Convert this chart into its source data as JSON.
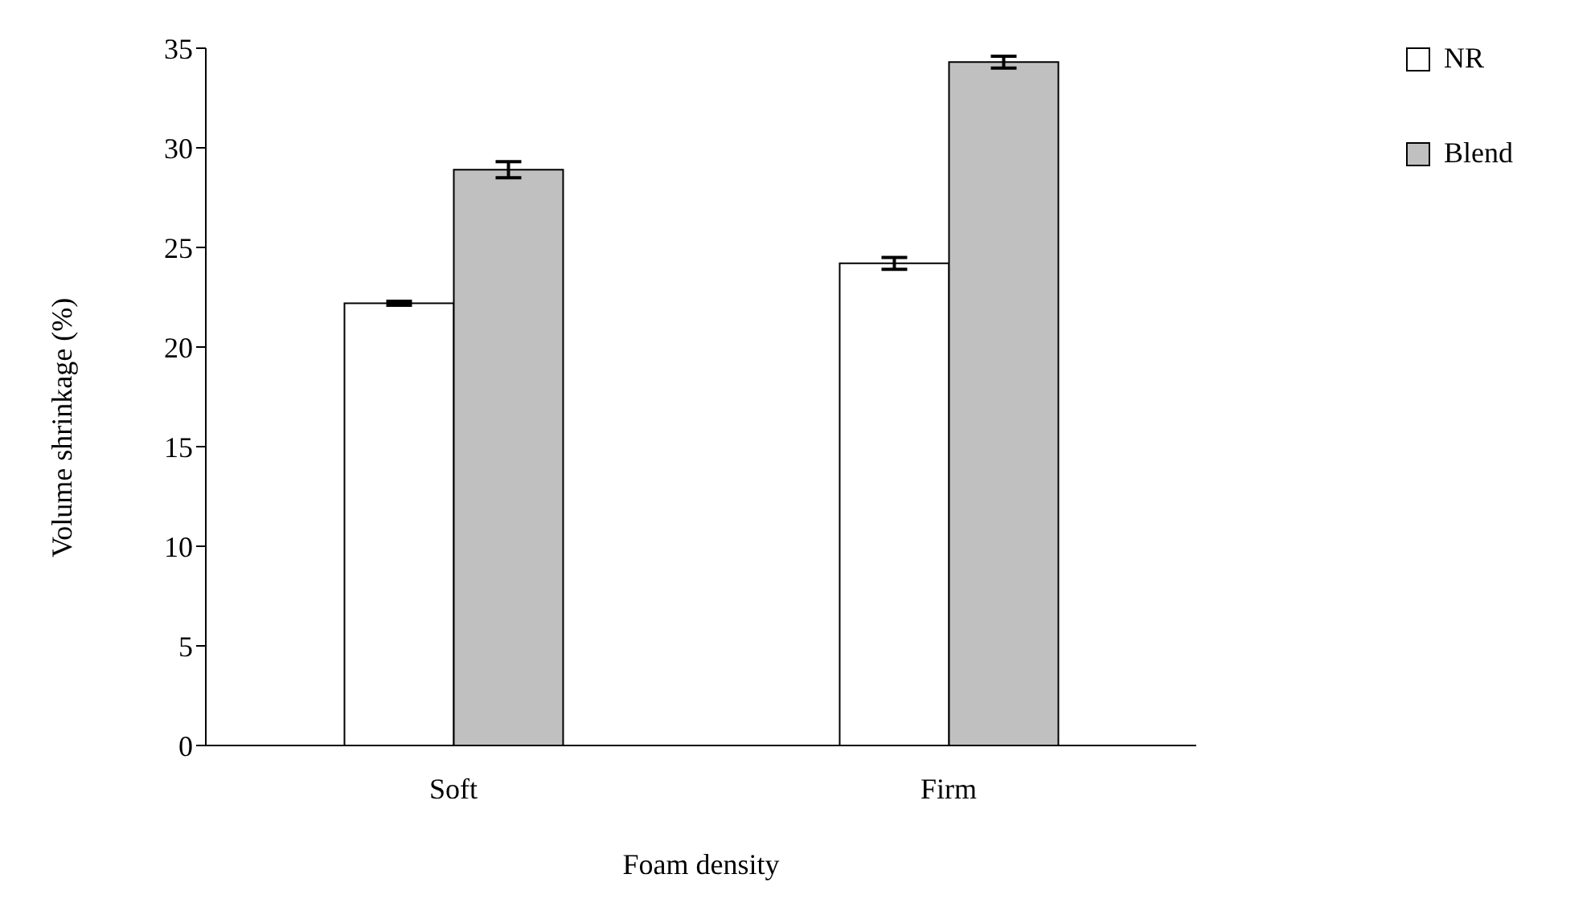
{
  "chart_data": {
    "type": "bar",
    "xlabel": "Foam density",
    "ylabel": "Volume shrinkage (%)",
    "categories": [
      "Soft",
      "Firm"
    ],
    "series": [
      {
        "name": "NR",
        "color": "#ffffff",
        "values": [
          22.2,
          24.2
        ],
        "errors": [
          0.1,
          0.3
        ]
      },
      {
        "name": "Blend",
        "color": "#c0c0c0",
        "values": [
          28.9,
          34.3
        ],
        "errors": [
          0.4,
          0.3
        ]
      }
    ],
    "ylim": [
      0,
      35
    ],
    "yticks": [
      0,
      5,
      10,
      15,
      20,
      25,
      30,
      35
    ],
    "grid": false,
    "legend": "top right"
  }
}
